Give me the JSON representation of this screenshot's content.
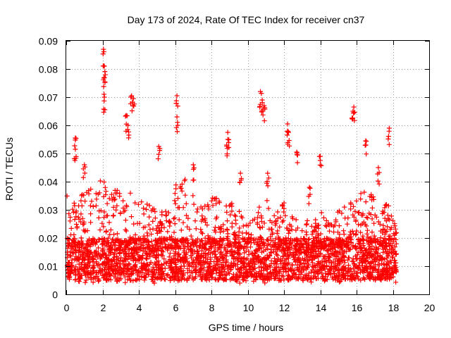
{
  "chart_data": {
    "type": "scatter",
    "title": "Day 173 of 2024, Rate Of TEC Index for receiver cn37",
    "xlabel": "GPS time / hours",
    "ylabel": "ROTI / TECUs",
    "xlim": [
      0,
      20
    ],
    "ylim": [
      0,
      0.09
    ],
    "x_ticks": [
      "0",
      "2",
      "4",
      "6",
      "8",
      "10",
      "12",
      "14",
      "16",
      "18",
      "20"
    ],
    "y_ticks": [
      "0",
      "0.01",
      "0.02",
      "0.03",
      "0.04",
      "0.05",
      "0.06",
      "0.07",
      "0.08",
      "0.09"
    ],
    "grid": true,
    "marker": "+",
    "color": "#ff0000",
    "data_time_range_hours": [
      0,
      18.2
    ],
    "baseline_band": [
      0.005,
      0.02
    ],
    "series": [
      {
        "name": "ROTI",
        "notable_points": [
          {
            "x": 2.05,
            "y": 0.087
          },
          {
            "x": 2.1,
            "y": 0.081
          },
          {
            "x": 2.1,
            "y": 0.077
          },
          {
            "x": 2.1,
            "y": 0.07
          },
          {
            "x": 3.6,
            "y": 0.0705
          },
          {
            "x": 3.7,
            "y": 0.0695
          },
          {
            "x": 6.1,
            "y": 0.0705
          },
          {
            "x": 6.1,
            "y": 0.063
          },
          {
            "x": 10.7,
            "y": 0.072
          },
          {
            "x": 10.8,
            "y": 0.069
          },
          {
            "x": 10.9,
            "y": 0.067
          },
          {
            "x": 15.85,
            "y": 0.0665
          },
          {
            "x": 15.8,
            "y": 0.065
          },
          {
            "x": 17.8,
            "y": 0.059
          },
          {
            "x": 12.2,
            "y": 0.0605
          },
          {
            "x": 12.25,
            "y": 0.0575
          },
          {
            "x": 3.3,
            "y": 0.0635
          },
          {
            "x": 3.4,
            "y": 0.06
          },
          {
            "x": 0.5,
            "y": 0.0555
          },
          {
            "x": 0.5,
            "y": 0.0515
          },
          {
            "x": 8.9,
            "y": 0.0575
          },
          {
            "x": 8.9,
            "y": 0.055
          },
          {
            "x": 5.1,
            "y": 0.0525
          },
          {
            "x": 12.7,
            "y": 0.0505
          },
          {
            "x": 14.0,
            "y": 0.049
          },
          {
            "x": 16.5,
            "y": 0.0545
          },
          {
            "x": 1.0,
            "y": 0.046
          },
          {
            "x": 7.0,
            "y": 0.046
          },
          {
            "x": 9.6,
            "y": 0.043
          },
          {
            "x": 11.1,
            "y": 0.043
          },
          {
            "x": 13.4,
            "y": 0.038
          },
          {
            "x": 17.2,
            "y": 0.045
          },
          {
            "x": 0.0,
            "y": 0.036
          }
        ],
        "envelope": [
          {
            "x": 0.0,
            "upper": 0.028
          },
          {
            "x": 0.5,
            "upper": 0.034
          },
          {
            "x": 1.0,
            "upper": 0.036
          },
          {
            "x": 1.5,
            "upper": 0.038
          },
          {
            "x": 2.0,
            "upper": 0.042
          },
          {
            "x": 2.5,
            "upper": 0.039
          },
          {
            "x": 3.0,
            "upper": 0.036
          },
          {
            "x": 3.5,
            "upper": 0.041
          },
          {
            "x": 4.0,
            "upper": 0.034
          },
          {
            "x": 4.5,
            "upper": 0.032
          },
          {
            "x": 5.0,
            "upper": 0.03
          },
          {
            "x": 5.5,
            "upper": 0.031
          },
          {
            "x": 6.0,
            "upper": 0.04
          },
          {
            "x": 6.5,
            "upper": 0.042
          },
          {
            "x": 7.0,
            "upper": 0.036
          },
          {
            "x": 7.5,
            "upper": 0.033
          },
          {
            "x": 8.0,
            "upper": 0.034
          },
          {
            "x": 8.5,
            "upper": 0.036
          },
          {
            "x": 9.0,
            "upper": 0.035
          },
          {
            "x": 9.5,
            "upper": 0.03
          },
          {
            "x": 10.0,
            "upper": 0.026
          },
          {
            "x": 10.5,
            "upper": 0.03
          },
          {
            "x": 11.0,
            "upper": 0.034
          },
          {
            "x": 11.5,
            "upper": 0.029
          },
          {
            "x": 12.0,
            "upper": 0.033
          },
          {
            "x": 12.5,
            "upper": 0.027
          },
          {
            "x": 13.0,
            "upper": 0.026
          },
          {
            "x": 13.5,
            "upper": 0.028
          },
          {
            "x": 14.0,
            "upper": 0.03
          },
          {
            "x": 14.5,
            "upper": 0.028
          },
          {
            "x": 15.0,
            "upper": 0.03
          },
          {
            "x": 15.5,
            "upper": 0.033
          },
          {
            "x": 16.0,
            "upper": 0.035
          },
          {
            "x": 16.5,
            "upper": 0.038
          },
          {
            "x": 17.0,
            "upper": 0.034
          },
          {
            "x": 17.5,
            "upper": 0.033
          },
          {
            "x": 18.0,
            "upper": 0.03
          },
          {
            "x": 18.2,
            "upper": 0.026
          }
        ]
      }
    ]
  }
}
